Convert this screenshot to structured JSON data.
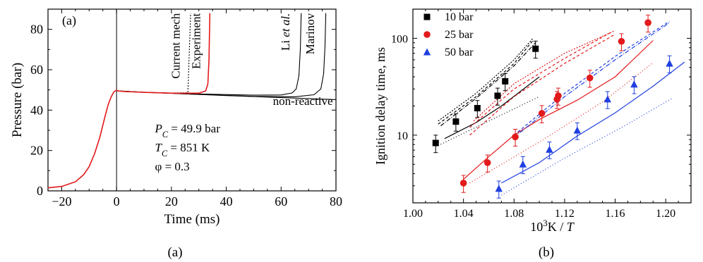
{
  "captions": [
    "(a)",
    "(b)"
  ],
  "chart_data": [
    {
      "type": "line",
      "panel_label": "(a)",
      "xlabel": "Time (ms)",
      "ylabel": "Pressure (bar)",
      "xlim": [
        -25,
        80
      ],
      "ylim": [
        0,
        90
      ],
      "x_ticks": [
        -20,
        0,
        20,
        40,
        60,
        80
      ],
      "y_ticks": [
        0,
        20,
        40,
        60,
        80
      ],
      "grid": false,
      "annotations": [
        {
          "parts": [
            {
              "t": "P",
              "style": "italic"
            },
            {
              "t": "C",
              "style": "sub-italic"
            },
            {
              "t": " = 49.9 bar",
              "style": "normal"
            }
          ]
        },
        {
          "parts": [
            {
              "t": "T",
              "style": "italic"
            },
            {
              "t": "C",
              "style": "sub-italic"
            },
            {
              "t": " = 851 K",
              "style": "normal"
            }
          ]
        },
        {
          "parts": [
            {
              "t": "φ = 0.3",
              "style": "normal"
            }
          ]
        }
      ],
      "series": [
        {
          "name": "Current mech",
          "color": "#000000",
          "dash": "2,2",
          "label_parts": [
            {
              "t": "Current mech",
              "style": "normal"
            }
          ],
          "x": [
            -25,
            -20,
            -15,
            -12,
            -10,
            -8,
            -6,
            -5,
            -4,
            -3,
            -2,
            -1,
            0,
            0.5,
            3,
            10,
            20,
            26,
            27
          ],
          "y": [
            1.5,
            2.2,
            4.5,
            8,
            12,
            18.5,
            27,
            32.5,
            38,
            43,
            46.5,
            49,
            49.9,
            49.5,
            49.2,
            48.8,
            48.5,
            48.6,
            88
          ]
        },
        {
          "name": "Experiment",
          "color": "#e31a1c",
          "dash": "",
          "label_parts": [
            {
              "t": "Experiment",
              "style": "normal"
            }
          ],
          "x": [
            -25,
            -20,
            -15,
            -12,
            -10,
            -8,
            -6,
            -5,
            -4,
            -3,
            -2,
            -1,
            0,
            0.5,
            3,
            10,
            20,
            30,
            32.5,
            33.3,
            33.7,
            34
          ],
          "y": [
            1.5,
            2.2,
            4.5,
            8,
            12,
            18.5,
            27,
            32.5,
            38,
            43,
            46.5,
            49,
            49.9,
            49.5,
            49.2,
            48.8,
            48.4,
            48.4,
            49.5,
            53,
            65,
            88
          ]
        },
        {
          "name": "Li et al.",
          "color": "#000000",
          "dash": "",
          "label_parts": [
            {
              "t": "Li ",
              "style": "normal"
            },
            {
              "t": "et al.",
              "style": "italic"
            }
          ],
          "x": [
            0,
            0.5,
            10,
            30,
            50,
            60,
            64,
            65.5,
            66.5,
            67,
            67.3
          ],
          "y": [
            49.9,
            49.5,
            48.8,
            48.0,
            47.4,
            47.5,
            48.5,
            50.5,
            57,
            70,
            88
          ]
        },
        {
          "name": "Marinov",
          "color": "#000000",
          "dash": "",
          "label_parts": [
            {
              "t": "Marinov",
              "style": "normal"
            }
          ],
          "x": [
            0,
            0.5,
            10,
            30,
            50,
            65,
            72,
            74.5,
            75.5,
            76,
            76.3
          ],
          "y": [
            49.9,
            49.5,
            48.8,
            47.8,
            46.8,
            46.6,
            47.6,
            50.5,
            58,
            72,
            88
          ]
        },
        {
          "name": "non-reactive",
          "color": "#000000",
          "dash": "",
          "label_parts": [
            {
              "t": "non-reactive",
              "style": "normal"
            }
          ],
          "x": [
            0,
            0.5,
            10,
            20,
            40,
            60,
            80
          ],
          "y": [
            49.9,
            49.5,
            48.8,
            48.3,
            47.2,
            46.2,
            45.2
          ]
        }
      ]
    },
    {
      "type": "scatter",
      "xlabel_parts": [
        {
          "t": "10",
          "style": "normal"
        },
        {
          "t": "3",
          "style": "sup"
        },
        {
          "t": "K / ",
          "style": "normal"
        },
        {
          "t": "T",
          "style": "italic"
        }
      ],
      "ylabel": "Ignition delay time, ms",
      "xlim": [
        1.0,
        1.22
      ],
      "ylim": [
        2,
        200
      ],
      "y_scale": "log",
      "x_ticks": [
        1.0,
        1.04,
        1.08,
        1.12,
        1.16,
        1.2
      ],
      "x_tick_labels": [
        "1.00",
        "1.04",
        "1.08",
        "1.12",
        "1.16",
        "1.20"
      ],
      "y_ticks": [
        10,
        100
      ],
      "y_tick_labels": [
        "10",
        "100"
      ],
      "grid": false,
      "legend_position": "top-left",
      "series": [
        {
          "name": "10 bar",
          "color": "#000000",
          "marker": "square",
          "x": [
            1.018,
            1.034,
            1.051,
            1.067,
            1.073,
            1.097
          ],
          "y": [
            8.3,
            13.8,
            19,
            25.5,
            36,
            78
          ],
          "yerr": [
            1.7,
            2.8,
            3.8,
            5.1,
            7.2,
            15.6
          ]
        },
        {
          "name": "25 bar",
          "color": "#e31a1c",
          "marker": "circle",
          "x": [
            1.04,
            1.059,
            1.081,
            1.102,
            1.114,
            1.115,
            1.14,
            1.165,
            1.186
          ],
          "y": [
            3.2,
            5.2,
            9.6,
            16.8,
            23.5,
            25.5,
            39,
            93,
            145
          ],
          "yerr": [
            0.64,
            1.04,
            1.9,
            3.4,
            4.7,
            5.1,
            7.8,
            18.6,
            29
          ]
        },
        {
          "name": "50 bar",
          "color": "#1f3fe0",
          "marker": "triangle",
          "x": [
            1.068,
            1.087,
            1.108,
            1.13,
            1.154,
            1.175,
            1.203
          ],
          "y": [
            2.8,
            5.0,
            7.1,
            11.2,
            23.5,
            33.5,
            55
          ],
          "yerr": [
            0.56,
            1.0,
            1.4,
            2.2,
            4.7,
            6.7,
            11
          ]
        }
      ],
      "model_curves": [
        {
          "color": "#000000",
          "dash": "",
          "x": [
            1.025,
            1.05,
            1.07,
            1.1
          ],
          "y": [
            9.2,
            13.5,
            20,
            40
          ]
        },
        {
          "color": "#000000",
          "dash": "4,3",
          "x": [
            1.02,
            1.05,
            1.08,
            1.095
          ],
          "y": [
            13,
            25,
            55,
            95
          ]
        },
        {
          "color": "#000000",
          "dash": "2,2",
          "x": [
            1.02,
            1.05,
            1.08,
            1.095
          ],
          "y": [
            14,
            27,
            60,
            100
          ]
        },
        {
          "color": "#000000",
          "dash": "6,2,1,2",
          "x": [
            1.022,
            1.05,
            1.08,
            1.097
          ],
          "y": [
            12.5,
            24,
            52,
            90
          ]
        },
        {
          "color": "#000000",
          "dash": "1,3",
          "x": [
            1.02,
            1.06,
            1.1
          ],
          "y": [
            7.8,
            14,
            25
          ]
        },
        {
          "color": "#e31a1c",
          "dash": "",
          "x": [
            1.04,
            1.06,
            1.08,
            1.1,
            1.13,
            1.16,
            1.19
          ],
          "y": [
            3.5,
            6,
            10,
            14.5,
            23,
            40,
            95
          ]
        },
        {
          "color": "#e31a1c",
          "dash": "4,3",
          "x": [
            1.045,
            1.08,
            1.12,
            1.16
          ],
          "y": [
            10,
            25,
            55,
            110
          ]
        },
        {
          "color": "#e31a1c",
          "dash": "4,3",
          "x": [
            1.045,
            1.08,
            1.12,
            1.158
          ],
          "y": [
            12,
            30,
            62,
            118
          ]
        },
        {
          "color": "#e31a1c",
          "dash": "2,2",
          "x": [
            1.048,
            1.08,
            1.12,
            1.16
          ],
          "y": [
            14,
            34,
            70,
            120
          ]
        },
        {
          "color": "#e31a1c",
          "dash": "1,3",
          "x": [
            1.045,
            1.1,
            1.15,
            1.19
          ],
          "y": [
            3.2,
            8.5,
            22,
            56
          ]
        },
        {
          "color": "#1f3fe0",
          "dash": "",
          "x": [
            1.07,
            1.1,
            1.13,
            1.16,
            1.19,
            1.215
          ],
          "y": [
            3.2,
            5.2,
            9.8,
            17,
            32,
            57
          ]
        },
        {
          "color": "#1f3fe0",
          "dash": "6,2,1,2",
          "x": [
            1.08,
            1.12,
            1.16,
            1.203
          ],
          "y": [
            9.5,
            25,
            60,
            145
          ]
        },
        {
          "color": "#1f3fe0",
          "dash": "4,3",
          "x": [
            1.08,
            1.12,
            1.16,
            1.203
          ],
          "y": [
            10,
            27,
            65,
            150
          ]
        },
        {
          "color": "#1f3fe0",
          "dash": "1,3",
          "x": [
            1.07,
            1.12,
            1.17,
            1.205
          ],
          "y": [
            2.4,
            5.8,
            13,
            24
          ]
        }
      ]
    }
  ]
}
